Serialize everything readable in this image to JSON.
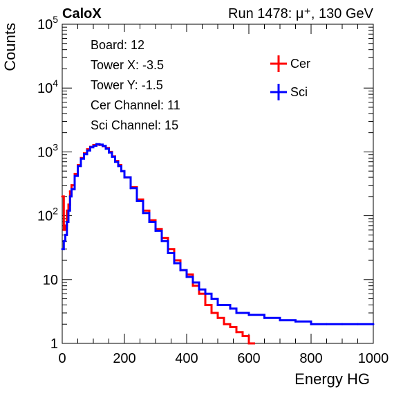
{
  "chart_data": {
    "type": "line",
    "title_left": "CaloX",
    "title_right": "Run 1478:   μ⁺, 130 GeV",
    "xlabel": "Energy HG",
    "ylabel": "Counts",
    "xlim": [
      0,
      1000
    ],
    "ylim": [
      1,
      100000
    ],
    "yscale": "log",
    "x_ticks": [
      0,
      200,
      400,
      600,
      800,
      1000
    ],
    "y_ticks": [
      {
        "value": 1,
        "base": "1",
        "exp": ""
      },
      {
        "value": 10,
        "base": "10",
        "exp": ""
      },
      {
        "value": 100,
        "base": "10",
        "exp": "2"
      },
      {
        "value": 1000,
        "base": "10",
        "exp": "3"
      },
      {
        "value": 10000,
        "base": "10",
        "exp": "4"
      },
      {
        "value": 100000,
        "base": "10",
        "exp": "5"
      }
    ],
    "info_lines": [
      "Board: 12",
      "Tower X: -3.5",
      "Tower Y: -1.5",
      "Cer Channel: 11",
      "Sci Channel: 15"
    ],
    "legend_position": "top-right",
    "series": [
      {
        "name": "Cer",
        "color": "#ff0000",
        "x": [
          0,
          5,
          10,
          15,
          20,
          25,
          30,
          40,
          50,
          60,
          70,
          80,
          90,
          100,
          110,
          120,
          130,
          140,
          150,
          160,
          170,
          180,
          190,
          200,
          220,
          240,
          260,
          280,
          300,
          320,
          340,
          360,
          380,
          400,
          420,
          440,
          460,
          480,
          500,
          520,
          540,
          560,
          580,
          600
        ],
        "y": [
          200,
          60,
          70,
          120,
          150,
          240,
          300,
          450,
          620,
          800,
          950,
          1100,
          1200,
          1280,
          1300,
          1290,
          1230,
          1150,
          1000,
          850,
          720,
          620,
          500,
          400,
          280,
          180,
          120,
          85,
          62,
          45,
          30,
          20,
          14,
          12,
          8,
          6,
          4,
          3,
          2.5,
          2,
          1.8,
          1.5,
          1.3,
          1
        ]
      },
      {
        "name": "Sci",
        "color": "#0000ff",
        "x": [
          0,
          5,
          10,
          15,
          20,
          25,
          30,
          40,
          50,
          60,
          70,
          80,
          90,
          100,
          110,
          120,
          130,
          140,
          150,
          160,
          170,
          180,
          190,
          200,
          220,
          240,
          260,
          280,
          300,
          320,
          340,
          360,
          380,
          400,
          420,
          440,
          460,
          480,
          500,
          520,
          540,
          560,
          580,
          600,
          650,
          700,
          750,
          800,
          850,
          900,
          950,
          1000
        ],
        "y": [
          30,
          40,
          50,
          80,
          120,
          200,
          260,
          420,
          600,
          780,
          920,
          1050,
          1180,
          1250,
          1320,
          1300,
          1240,
          1120,
          980,
          840,
          700,
          600,
          500,
          400,
          270,
          170,
          110,
          80,
          58,
          40,
          26,
          18,
          14,
          11,
          9,
          7,
          6,
          5,
          4,
          4,
          3.5,
          3,
          3,
          2.8,
          2.5,
          2.3,
          2.2,
          2,
          2,
          2,
          2,
          2
        ]
      }
    ]
  }
}
